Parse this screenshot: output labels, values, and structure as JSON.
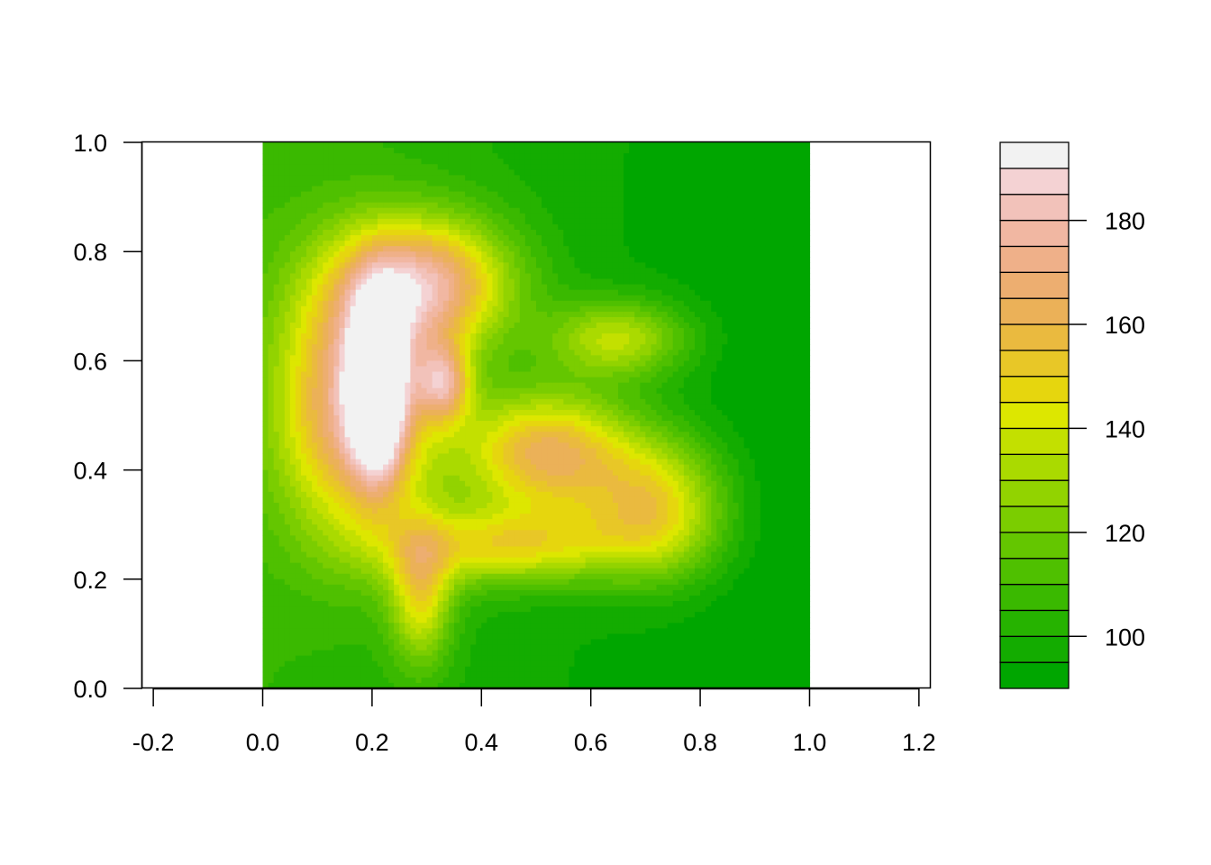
{
  "chart_data": {
    "type": "heatmap",
    "subtype": "filled-contour",
    "title": "",
    "xlabel": "",
    "ylabel": "",
    "xlim": [
      -0.22,
      1.22
    ],
    "ylim": [
      0.0,
      1.0
    ],
    "data_extent": {
      "x": [
        0.0,
        1.0
      ],
      "y": [
        0.0,
        1.0
      ]
    },
    "x_ticks": [
      "-0.2",
      "0.0",
      "0.2",
      "0.4",
      "0.6",
      "0.8",
      "1.0",
      "1.2"
    ],
    "x_tick_values": [
      -0.2,
      0.0,
      0.2,
      0.4,
      0.6,
      0.8,
      1.0,
      1.2
    ],
    "y_ticks": [
      "0.0",
      "0.2",
      "0.4",
      "0.6",
      "0.8",
      "1.0"
    ],
    "y_tick_values": [
      0.0,
      0.2,
      0.4,
      0.6,
      0.8,
      1.0
    ],
    "levels": [
      90,
      95,
      100,
      105,
      110,
      115,
      120,
      125,
      130,
      135,
      140,
      145,
      150,
      155,
      160,
      165,
      170,
      175,
      180,
      185,
      190,
      195
    ],
    "legend_ticks": [
      "100",
      "120",
      "140",
      "160",
      "180"
    ],
    "legend_tick_values": [
      100,
      120,
      140,
      160,
      180
    ],
    "legend_position": "right",
    "colors": [
      "#00A600",
      "#13AC00",
      "#26B300",
      "#3AB900",
      "#4FC000",
      "#64C600",
      "#7BCD00",
      "#92D300",
      "#AADA00",
      "#C3E000",
      "#DDE700",
      "#E6D60E",
      "#E8C727",
      "#EABA3F",
      "#EBB158",
      "#EDAE70",
      "#EFB089",
      "#F1B7A2",
      "#F2C2BA",
      "#F4D2D3",
      "#F2F2F2"
    ],
    "peaks": [
      {
        "x": 0.21,
        "y": 0.55,
        "value": 193,
        "sx": 0.035,
        "sy": 0.11
      },
      {
        "x": 0.17,
        "y": 0.52,
        "value": 178,
        "sx": 0.1,
        "sy": 0.17
      },
      {
        "x": 0.3,
        "y": 0.74,
        "value": 176,
        "sx": 0.11,
        "sy": 0.085
      },
      {
        "x": 0.33,
        "y": 0.56,
        "value": 160,
        "sx": 0.035,
        "sy": 0.05
      },
      {
        "x": 0.52,
        "y": 0.43,
        "value": 170,
        "sx": 0.11,
        "sy": 0.08
      },
      {
        "x": 0.72,
        "y": 0.33,
        "value": 158,
        "sx": 0.09,
        "sy": 0.09
      },
      {
        "x": 0.65,
        "y": 0.64,
        "value": 146,
        "sx": 0.09,
        "sy": 0.05
      },
      {
        "x": 0.29,
        "y": 0.17,
        "value": 148,
        "sx": 0.04,
        "sy": 0.09
      },
      {
        "x": 0.45,
        "y": 0.26,
        "value": 152,
        "sx": 0.15,
        "sy": 0.05
      }
    ],
    "base_value": 105,
    "gradient": {
      "dx": -18,
      "dy": 2
    }
  }
}
